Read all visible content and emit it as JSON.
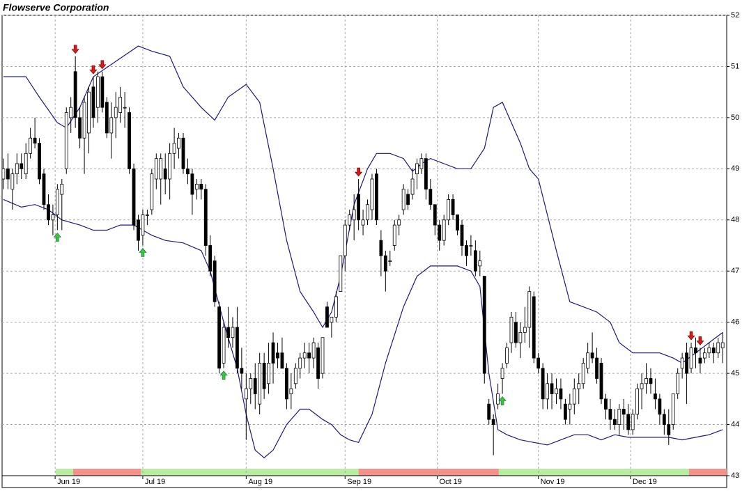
{
  "chart_data": {
    "type": "candlestick",
    "title": "Flowserve Corporation",
    "up_color": "#ffffff",
    "down_color": "#000000",
    "band_color": "#1a1a80",
    "grid": true,
    "xlim": [
      -0.3,
      160.9
    ],
    "ylim": [
      43,
      52
    ],
    "yticks": [
      43,
      44,
      45,
      46,
      47,
      48,
      49,
      50,
      51,
      52
    ],
    "xticks": [
      {
        "value": 11.5,
        "label": "Jun 19"
      },
      {
        "value": 31,
        "label": "Jul 19"
      },
      {
        "value": 54,
        "label": "Aug 19"
      },
      {
        "value": 76,
        "label": "Sep 19"
      },
      {
        "value": 96.5,
        "label": "Oct 19"
      },
      {
        "value": 119,
        "label": "Nov 19"
      },
      {
        "value": 139.5,
        "label": "Dec 19"
      }
    ],
    "ohlc": [
      [
        48.8,
        49.2,
        48.6,
        49.0
      ],
      [
        49.0,
        49.3,
        48.6,
        48.8
      ],
      [
        48.6,
        49.0,
        48.2,
        48.9
      ],
      [
        48.9,
        49.3,
        48.7,
        49.1
      ],
      [
        49.1,
        49.3,
        48.8,
        49.0
      ],
      [
        48.9,
        49.5,
        48.8,
        49.3
      ],
      [
        49.3,
        49.8,
        49.2,
        49.6
      ],
      [
        49.6,
        50.0,
        49.4,
        49.5
      ],
      [
        49.5,
        49.6,
        48.7,
        48.8
      ],
      [
        48.9,
        49.0,
        48.2,
        48.3
      ],
      [
        48.3,
        48.5,
        47.9,
        48.0
      ],
      [
        48.0,
        48.3,
        47.7,
        48.1
      ],
      [
        48.1,
        48.7,
        47.8,
        48.6
      ],
      [
        48.5,
        48.8,
        47.8,
        48.7
      ],
      [
        49.0,
        50.2,
        48.9,
        50.1
      ],
      [
        50.0,
        50.4,
        49.7,
        50.2
      ],
      [
        50.9,
        51.2,
        49.8,
        50.0
      ],
      [
        50.0,
        50.2,
        49.4,
        49.6
      ],
      [
        49.6,
        50.4,
        48.9,
        50.3
      ],
      [
        49.7,
        50.6,
        49.3,
        50.5
      ],
      [
        50.6,
        50.8,
        49.8,
        50.0
      ],
      [
        50.2,
        50.9,
        49.9,
        50.8
      ],
      [
        50.8,
        50.9,
        50.1,
        50.2
      ],
      [
        50.3,
        50.4,
        49.6,
        49.7
      ],
      [
        49.7,
        50.3,
        49.2,
        50.0
      ],
      [
        50.0,
        50.5,
        49.6,
        50.2
      ],
      [
        50.1,
        50.6,
        49.9,
        50.4
      ],
      [
        50.2,
        50.5,
        49.8,
        50.2
      ],
      [
        50.1,
        50.2,
        48.9,
        49.0
      ],
      [
        49.0,
        49.1,
        47.8,
        47.9
      ],
      [
        48.0,
        48.1,
        47.4,
        47.6
      ],
      [
        47.7,
        48.2,
        47.5,
        48.1
      ],
      [
        48.1,
        48.2,
        47.9,
        48.1
      ],
      [
        48.2,
        49.0,
        48.1,
        48.9
      ],
      [
        48.8,
        49.3,
        48.6,
        49.2
      ],
      [
        48.8,
        49.3,
        48.3,
        49.2
      ],
      [
        49.0,
        49.3,
        48.5,
        48.8
      ],
      [
        48.8,
        49.5,
        48.4,
        49.3
      ],
      [
        49.3,
        49.8,
        49.0,
        49.5
      ],
      [
        49.4,
        49.7,
        49.2,
        49.6
      ],
      [
        49.6,
        49.7,
        48.9,
        49.0
      ],
      [
        49.0,
        49.2,
        48.7,
        48.9
      ],
      [
        48.9,
        49.0,
        48.1,
        48.5
      ],
      [
        48.6,
        48.8,
        48.4,
        48.7
      ],
      [
        48.7,
        48.8,
        48.4,
        48.6
      ],
      [
        48.6,
        48.7,
        47.3,
        47.5
      ],
      [
        47.5,
        47.7,
        46.9,
        47.0
      ],
      [
        47.2,
        47.3,
        46.3,
        46.4
      ],
      [
        46.3,
        46.4,
        45.0,
        45.1
      ],
      [
        45.2,
        46.0,
        45.1,
        45.9
      ],
      [
        45.9,
        46.3,
        45.5,
        45.7
      ],
      [
        45.7,
        46.1,
        45.5,
        45.9
      ],
      [
        45.9,
        46.3,
        45.0,
        45.1
      ],
      [
        45.1,
        45.5,
        44.7,
        45.0
      ],
      [
        44.5,
        45.0,
        43.7,
        44.7
      ],
      [
        44.7,
        45.0,
        44.4,
        44.9
      ],
      [
        44.9,
        45.2,
        44.3,
        44.6
      ],
      [
        44.4,
        45.4,
        44.2,
        45.2
      ],
      [
        45.2,
        45.4,
        44.5,
        44.7
      ],
      [
        44.8,
        45.6,
        44.6,
        45.2
      ],
      [
        45.6,
        45.8,
        44.8,
        45.2
      ],
      [
        45.4,
        45.6,
        45.1,
        45.3
      ],
      [
        45.4,
        45.7,
        45.1,
        45.1
      ],
      [
        45.1,
        45.2,
        44.3,
        44.5
      ],
      [
        44.6,
        45.0,
        44.3,
        44.7
      ],
      [
        44.8,
        45.2,
        44.7,
        45.1
      ],
      [
        45.1,
        45.4,
        44.9,
        45.3
      ],
      [
        45.3,
        45.6,
        45.1,
        45.4
      ],
      [
        45.4,
        45.6,
        45.0,
        45.3
      ],
      [
        45.3,
        45.7,
        45.1,
        45.6
      ],
      [
        45.5,
        45.6,
        44.7,
        44.9
      ],
      [
        45.0,
        45.7,
        44.9,
        45.7
      ],
      [
        46.3,
        46.4,
        45.9,
        45.9
      ],
      [
        46.0,
        46.1,
        45.7,
        46.1
      ],
      [
        46.1,
        46.6,
        46.0,
        46.5
      ],
      [
        46.6,
        47.3,
        46.6,
        47.3
      ],
      [
        47.3,
        48.0,
        47.0,
        47.9
      ],
      [
        47.9,
        48.2,
        47.8,
        48.1
      ],
      [
        48.0,
        48.5,
        47.6,
        48.2
      ],
      [
        48.5,
        48.8,
        47.8,
        48.0
      ],
      [
        47.9,
        48.2,
        47.7,
        48.0
      ],
      [
        48.0,
        48.4,
        47.9,
        48.3
      ],
      [
        48.2,
        48.9,
        48.0,
        48.8
      ],
      [
        48.9,
        49.0,
        47.9,
        48.0
      ],
      [
        47.6,
        47.8,
        46.9,
        47.3
      ],
      [
        47.3,
        47.4,
        46.6,
        47.0
      ],
      [
        47.2,
        47.4,
        47.1,
        47.2
      ],
      [
        47.5,
        48.0,
        47.4,
        47.9
      ],
      [
        47.9,
        48.1,
        47.7,
        48.0
      ],
      [
        48.2,
        48.7,
        48.1,
        48.6
      ],
      [
        48.5,
        48.6,
        48.2,
        48.3
      ],
      [
        48.5,
        49.0,
        48.4,
        48.8
      ],
      [
        48.9,
        49.2,
        48.6,
        49.1
      ],
      [
        49.0,
        49.3,
        48.9,
        49.2
      ],
      [
        49.2,
        49.3,
        48.4,
        48.6
      ],
      [
        48.6,
        48.8,
        48.2,
        48.3
      ],
      [
        48.3,
        48.3,
        47.7,
        47.9
      ],
      [
        47.9,
        48.0,
        47.4,
        47.6
      ],
      [
        47.6,
        48.1,
        47.5,
        48.0
      ],
      [
        48.0,
        48.5,
        47.9,
        48.4
      ],
      [
        48.4,
        48.5,
        48.0,
        48.1
      ],
      [
        48.1,
        48.1,
        47.7,
        47.8
      ],
      [
        47.9,
        48.0,
        47.3,
        47.5
      ],
      [
        47.5,
        47.6,
        47.1,
        47.3
      ],
      [
        47.5,
        47.7,
        47.3,
        47.5
      ],
      [
        47.4,
        47.6,
        46.9,
        47.0
      ],
      [
        47.1,
        47.4,
        46.9,
        47.2
      ],
      [
        46.9,
        46.9,
        44.8,
        45.0
      ],
      [
        44.4,
        44.5,
        44.0,
        44.1
      ],
      [
        44.1,
        44.2,
        43.4,
        44.0
      ],
      [
        44.4,
        44.8,
        44.3,
        44.6
      ],
      [
        44.9,
        45.2,
        44.6,
        45.1
      ],
      [
        45.2,
        45.6,
        45.1,
        45.5
      ],
      [
        45.6,
        46.2,
        45.4,
        46.1
      ],
      [
        46.0,
        46.2,
        45.5,
        45.6
      ],
      [
        45.6,
        46.0,
        45.3,
        45.8
      ],
      [
        45.8,
        46.3,
        45.6,
        45.9
      ],
      [
        45.9,
        46.7,
        45.5,
        46.6
      ],
      [
        46.5,
        46.6,
        45.2,
        45.3
      ],
      [
        45.3,
        45.4,
        45.0,
        45.1
      ],
      [
        45.1,
        45.2,
        44.3,
        44.5
      ],
      [
        44.5,
        45.0,
        44.3,
        44.8
      ],
      [
        44.8,
        45.0,
        44.3,
        44.6
      ],
      [
        44.6,
        44.9,
        44.4,
        44.7
      ],
      [
        44.7,
        44.9,
        44.3,
        44.5
      ],
      [
        44.4,
        44.5,
        44.0,
        44.1
      ],
      [
        44.3,
        44.6,
        44.0,
        44.4
      ],
      [
        44.4,
        44.9,
        44.2,
        44.7
      ],
      [
        44.7,
        45.0,
        44.4,
        44.8
      ],
      [
        44.8,
        45.3,
        44.7,
        45.2
      ],
      [
        45.1,
        45.6,
        45.0,
        45.4
      ],
      [
        45.4,
        45.8,
        45.2,
        45.3
      ],
      [
        45.3,
        45.5,
        44.8,
        44.9
      ],
      [
        45.2,
        45.3,
        44.4,
        44.5
      ],
      [
        44.5,
        44.6,
        44.1,
        44.3
      ],
      [
        44.3,
        44.5,
        43.9,
        44.1
      ],
      [
        44.1,
        44.3,
        43.9,
        44.0
      ],
      [
        44.0,
        44.4,
        43.8,
        44.3
      ],
      [
        44.3,
        44.5,
        43.9,
        44.2
      ],
      [
        44.2,
        44.4,
        43.8,
        43.9
      ],
      [
        43.9,
        44.3,
        43.8,
        44.2
      ],
      [
        44.2,
        44.8,
        44.1,
        44.7
      ],
      [
        44.7,
        45.0,
        44.3,
        44.8
      ],
      [
        44.8,
        45.2,
        44.6,
        44.9
      ],
      [
        44.9,
        45.1,
        44.6,
        44.8
      ],
      [
        44.6,
        44.9,
        44.3,
        44.5
      ],
      [
        44.5,
        44.6,
        44.0,
        44.2
      ],
      [
        44.2,
        44.3,
        43.8,
        44.0
      ],
      [
        44.0,
        44.3,
        43.6,
        43.8
      ],
      [
        44.0,
        44.6,
        43.9,
        44.6
      ],
      [
        44.6,
        45.1,
        44.5,
        45.0
      ],
      [
        45.1,
        45.4,
        44.9,
        45.3
      ],
      [
        45.4,
        45.6,
        44.4,
        45.0
      ],
      [
        45.1,
        45.6,
        45.0,
        45.5
      ],
      [
        45.5,
        45.7,
        45.1,
        45.4
      ],
      [
        45.3,
        45.5,
        45.0,
        45.2
      ],
      [
        45.3,
        45.5,
        45.2,
        45.4
      ],
      [
        45.4,
        45.6,
        45.3,
        45.5
      ],
      [
        45.5,
        45.6,
        45.2,
        45.4
      ],
      [
        45.4,
        45.7,
        45.3,
        45.6
      ],
      [
        45.5,
        45.8,
        45.2,
        45.6
      ]
    ],
    "bands": [
      {
        "x": [
          0,
          5,
          8,
          12,
          14,
          17,
          20,
          25,
          30,
          33,
          37,
          40,
          44,
          47,
          50,
          54,
          57,
          60,
          63,
          66,
          69,
          71,
          73,
          75,
          78,
          81,
          83,
          86,
          89,
          91,
          93,
          95,
          98,
          101,
          104,
          107,
          109,
          111,
          113,
          115,
          117,
          119,
          121,
          123,
          126,
          129,
          132,
          135,
          137,
          140,
          143,
          146,
          149,
          151,
          154,
          157,
          160
        ],
        "values": [
          50.8,
          50.8,
          50.4,
          49.9,
          49.8,
          50.2,
          50.8,
          51.1,
          51.4,
          51.3,
          51.2,
          50.6,
          50.2,
          49.95,
          50.4,
          50.65,
          50.3,
          49.0,
          47.6,
          46.6,
          46.2,
          45.9,
          46.2,
          46.9,
          48.3,
          49.0,
          49.3,
          49.3,
          49.2,
          48.95,
          49.1,
          49.2,
          49.1,
          49.0,
          49.0,
          49.4,
          50.2,
          50.3,
          49.9,
          49.5,
          49.0,
          48.8,
          48.1,
          47.4,
          46.4,
          46.3,
          46.2,
          46.0,
          45.6,
          45.4,
          45.4,
          45.4,
          45.3,
          45.2,
          45.4,
          45.6,
          45.8
        ]
      },
      {
        "x": [
          0,
          4,
          7,
          10,
          13,
          17,
          20,
          23,
          26,
          29,
          31,
          33,
          36,
          40,
          44,
          46,
          49,
          52,
          54,
          56,
          58,
          60,
          63,
          66,
          68,
          71,
          73,
          75,
          77,
          79,
          82,
          85,
          89,
          92,
          95,
          98,
          101,
          104,
          106,
          108,
          110,
          112,
          115,
          118,
          121,
          124,
          127,
          130,
          133,
          136,
          139,
          142,
          145,
          148,
          151,
          154,
          157,
          160
        ],
        "values": [
          48.4,
          48.25,
          48.3,
          48.2,
          48.0,
          47.9,
          47.8,
          47.8,
          47.9,
          47.9,
          47.8,
          47.7,
          47.6,
          47.55,
          47.4,
          47.0,
          46.0,
          45.1,
          44.2,
          43.5,
          43.35,
          43.5,
          44.0,
          44.3,
          44.3,
          44.1,
          44.0,
          43.8,
          43.7,
          43.65,
          44.2,
          45.2,
          46.3,
          46.9,
          47.1,
          47.1,
          47.1,
          47.0,
          46.7,
          45.0,
          43.9,
          43.8,
          43.7,
          43.65,
          43.6,
          43.7,
          43.8,
          43.8,
          43.7,
          43.8,
          43.75,
          43.75,
          43.75,
          43.75,
          43.7,
          43.75,
          43.8,
          43.9
        ]
      }
    ],
    "sell_signals": [
      16,
      20,
      22,
      79,
      153,
      155
    ],
    "sell_color": "#d41a1a",
    "buy_signals": [
      12,
      31,
      49,
      111
    ],
    "buy_color": "#3ec43e",
    "regimes": [
      {
        "start": 11.6,
        "end": 15.5,
        "color": "#b8eca0"
      },
      {
        "start": 15.5,
        "end": 30.6,
        "color": "#f4918c"
      },
      {
        "start": 30.6,
        "end": 79,
        "color": "#b8eca0"
      },
      {
        "start": 79,
        "end": 110.2,
        "color": "#f4918c"
      },
      {
        "start": 110.2,
        "end": 152.5,
        "color": "#b8eca0"
      },
      {
        "start": 152.5,
        "end": 160.9,
        "color": "#f4918c"
      }
    ]
  }
}
